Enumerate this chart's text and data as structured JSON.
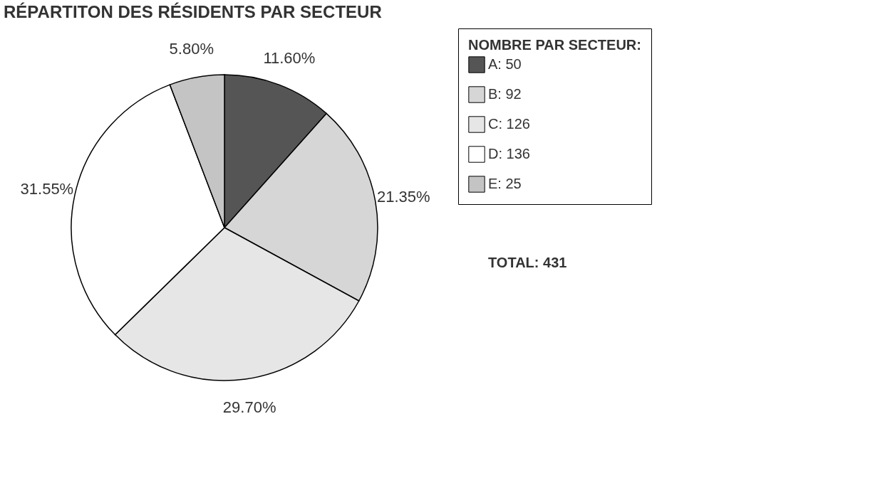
{
  "chart_data": {
    "type": "pie",
    "title": "RÉPARTITON DES RÉSIDENTS PAR SECTEUR",
    "categories": [
      "A: 50",
      "B: 92",
      "C: 126",
      "D: 136",
      "E: 25"
    ],
    "values": [
      11.6,
      21.35,
      29.7,
      31.55,
      5.8
    ],
    "value_labels": [
      "11.60%",
      "21.35%",
      "29.70%",
      "31.55%",
      "5.80%"
    ],
    "colors": [
      "#555555",
      "#d6d6d6",
      "#e6e6e6",
      "#ffffff",
      "#c4c4c4"
    ],
    "legend_title": "NOMBRE PAR SECTEUR:",
    "legend": "right",
    "annotations": [
      "TOTAL: 431"
    ]
  }
}
